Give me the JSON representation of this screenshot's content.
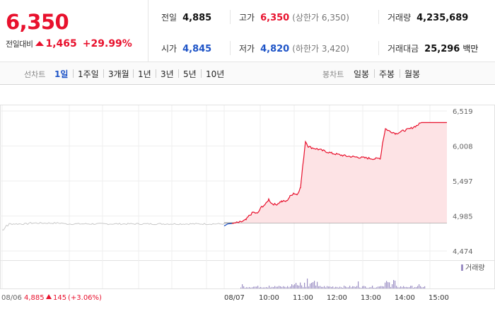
{
  "quote": {
    "price": "6,350",
    "change_label": "전일대비",
    "change": "1,465",
    "change_pct": "+29.99%"
  },
  "stats": {
    "prev_close_label": "전일",
    "prev_close": "4,885",
    "high_label": "고가",
    "high": "6,350",
    "upper_limit": "(상한가 6,350)",
    "volume_label": "거래량",
    "volume": "4,235,689",
    "open_label": "시가",
    "open": "4,845",
    "low_label": "저가",
    "low": "4,820",
    "lower_limit": "(하한가 3,420)",
    "amount_label": "거래대금",
    "amount": "25,296",
    "amount_unit": "백만"
  },
  "tabs": {
    "line_chart_label": "선차트",
    "line_periods": [
      "1일",
      "1주일",
      "3개월",
      "1년",
      "3년",
      "5년",
      "10년"
    ],
    "candle_chart_label": "봉차트",
    "candle_periods": [
      "일봉",
      "주봉",
      "월봉"
    ],
    "active": "1일"
  },
  "chart_data": {
    "type": "line",
    "y_ticks": [
      "6,519",
      "6,008",
      "5,497",
      "4,985",
      "4,474"
    ],
    "ylim": [
      4474,
      6519
    ],
    "baseline": 4885,
    "x_ticks": [
      "08/06",
      "08/07",
      "10:00",
      "11:00",
      "12:00",
      "13:00",
      "14:00",
      "15:00"
    ],
    "prev_day_note": {
      "date": "08/06",
      "close": "4,885",
      "change": "145",
      "pct": "(+3.06%)"
    },
    "volume_legend": "거래량",
    "colors": {
      "up": "#e8112d",
      "down": "#1e54c7",
      "fill": "#fde3e5",
      "prev": "#c8c8c8",
      "volume": "#9b8fc4"
    }
  }
}
